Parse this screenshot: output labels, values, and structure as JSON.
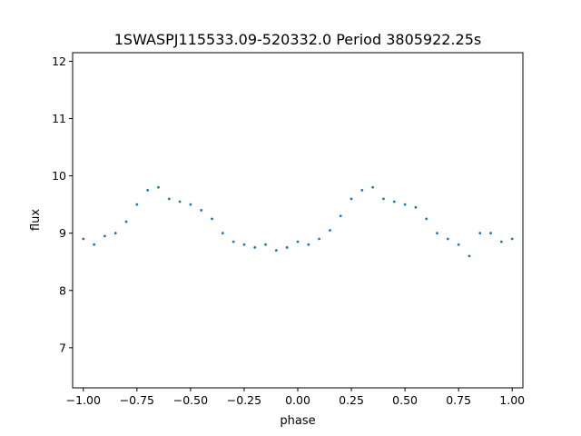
{
  "chart_data": {
    "type": "scatter",
    "title": "1SWASPJ115533.09-520332.0 Period 3805922.25s",
    "xlabel": "phase",
    "ylabel": "flux",
    "xlim": [
      -1.05,
      1.05
    ],
    "ylim": [
      6.3,
      12.15
    ],
    "xticks": [
      -1.0,
      -0.75,
      -0.5,
      -0.25,
      0.0,
      0.25,
      0.5,
      0.75,
      1.0
    ],
    "xtick_labels": [
      "−1.00",
      "−0.75",
      "−0.50",
      "−0.25",
      "0.00",
      "0.25",
      "0.50",
      "0.75",
      "1.00"
    ],
    "yticks": [
      7,
      8,
      9,
      10,
      11,
      12
    ],
    "ytick_labels": [
      "7",
      "8",
      "9",
      "10",
      "11",
      "12"
    ],
    "grid": false,
    "legend": "none",
    "point_color": "#1f77b4",
    "series": [
      {
        "x": [
          -1.0,
          -0.95,
          -0.9,
          -0.85,
          -0.8,
          -0.75,
          -0.7,
          -0.65,
          -0.6,
          -0.55,
          -0.5,
          -0.45,
          -0.4,
          -0.35,
          -0.3,
          -0.25,
          -0.2,
          -0.15,
          -0.1,
          -0.05,
          0.0,
          0.05,
          0.1,
          0.15,
          0.2,
          0.25,
          0.3,
          0.35,
          0.4,
          0.45,
          0.5,
          0.55,
          0.6,
          0.65,
          0.7,
          0.75,
          0.8,
          0.85,
          0.9,
          0.95,
          1.0
        ],
        "y": [
          8.9,
          8.8,
          8.95,
          9.0,
          9.2,
          9.5,
          9.75,
          9.8,
          9.6,
          9.55,
          9.5,
          9.4,
          9.25,
          9.0,
          8.85,
          8.8,
          8.75,
          8.8,
          8.7,
          8.75,
          8.85,
          8.8,
          8.9,
          9.05,
          9.3,
          9.6,
          9.75,
          9.8,
          9.6,
          9.55,
          9.5,
          9.45,
          9.25,
          9.0,
          8.9,
          8.8,
          8.6,
          9.0,
          9.0,
          8.85,
          8.9
        ]
      }
    ]
  }
}
